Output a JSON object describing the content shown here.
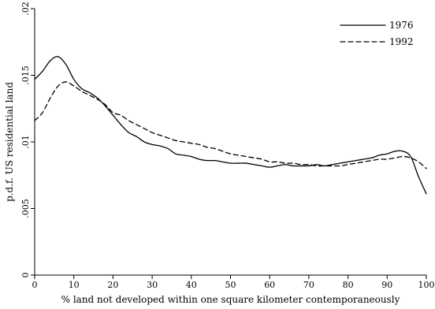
{
  "chart_data": {
    "type": "line",
    "xlabel": "% land not developed within one square kilometer contemporaneously",
    "ylabel": "p.d.f. US residential land",
    "xlim": [
      0,
      100
    ],
    "ylim": [
      0,
      0.02
    ],
    "xticks": [
      0,
      10,
      20,
      30,
      40,
      50,
      60,
      70,
      80,
      90,
      100
    ],
    "xtick_labels": [
      "0",
      "10",
      "20",
      "30",
      "40",
      "50",
      "60",
      "70",
      "80",
      "90",
      "100"
    ],
    "yticks": [
      0,
      0.005,
      0.01,
      0.015,
      0.02
    ],
    "ytick_labels": [
      "0",
      ".005",
      ".01",
      ".015",
      ".02"
    ],
    "grid": false,
    "legend_position": "top-right",
    "series": [
      {
        "name": "1976",
        "style": "solid",
        "color": "#000000",
        "x": [
          0,
          2,
          4,
          6,
          8,
          10,
          12,
          14,
          16,
          18,
          20,
          22,
          24,
          26,
          28,
          30,
          32,
          34,
          36,
          38,
          40,
          42,
          44,
          46,
          48,
          50,
          52,
          54,
          56,
          58,
          60,
          62,
          64,
          66,
          68,
          70,
          72,
          74,
          76,
          78,
          80,
          82,
          84,
          86,
          88,
          90,
          92,
          94,
          96,
          98,
          100
        ],
        "values": [
          0.0147,
          0.0153,
          0.0161,
          0.0164,
          0.0158,
          0.0147,
          0.014,
          0.0137,
          0.0133,
          0.0127,
          0.012,
          0.0113,
          0.0107,
          0.0104,
          0.01,
          0.0098,
          0.0097,
          0.0095,
          0.0091,
          0.009,
          0.0089,
          0.0087,
          0.0086,
          0.0086,
          0.0085,
          0.0084,
          0.0084,
          0.0084,
          0.0083,
          0.0082,
          0.0081,
          0.0082,
          0.0083,
          0.0082,
          0.0082,
          0.0082,
          0.0083,
          0.0082,
          0.0083,
          0.0084,
          0.0085,
          0.0086,
          0.0087,
          0.0088,
          0.009,
          0.0091,
          0.0093,
          0.0093,
          0.0089,
          0.0074,
          0.0061
        ]
      },
      {
        "name": "1992",
        "style": "dashed",
        "color": "#000000",
        "x": [
          0,
          2,
          4,
          6,
          8,
          10,
          12,
          14,
          16,
          18,
          20,
          22,
          24,
          26,
          28,
          30,
          32,
          34,
          36,
          38,
          40,
          42,
          44,
          46,
          48,
          50,
          52,
          54,
          56,
          58,
          60,
          62,
          64,
          66,
          68,
          70,
          72,
          74,
          76,
          78,
          80,
          82,
          84,
          86,
          88,
          90,
          92,
          94,
          96,
          98,
          100
        ],
        "values": [
          0.0116,
          0.0122,
          0.0133,
          0.0142,
          0.0145,
          0.0142,
          0.0138,
          0.0135,
          0.0132,
          0.0128,
          0.0122,
          0.012,
          0.0116,
          0.0113,
          0.011,
          0.0107,
          0.0105,
          0.0103,
          0.0101,
          0.01,
          0.0099,
          0.0098,
          0.0096,
          0.0095,
          0.0093,
          0.0091,
          0.009,
          0.0089,
          0.0088,
          0.0087,
          0.0085,
          0.0085,
          0.0084,
          0.0084,
          0.0083,
          0.0083,
          0.0082,
          0.0082,
          0.0082,
          0.0082,
          0.0083,
          0.0084,
          0.0085,
          0.0086,
          0.0087,
          0.0087,
          0.0088,
          0.0089,
          0.0088,
          0.0085,
          0.008
        ]
      }
    ]
  }
}
